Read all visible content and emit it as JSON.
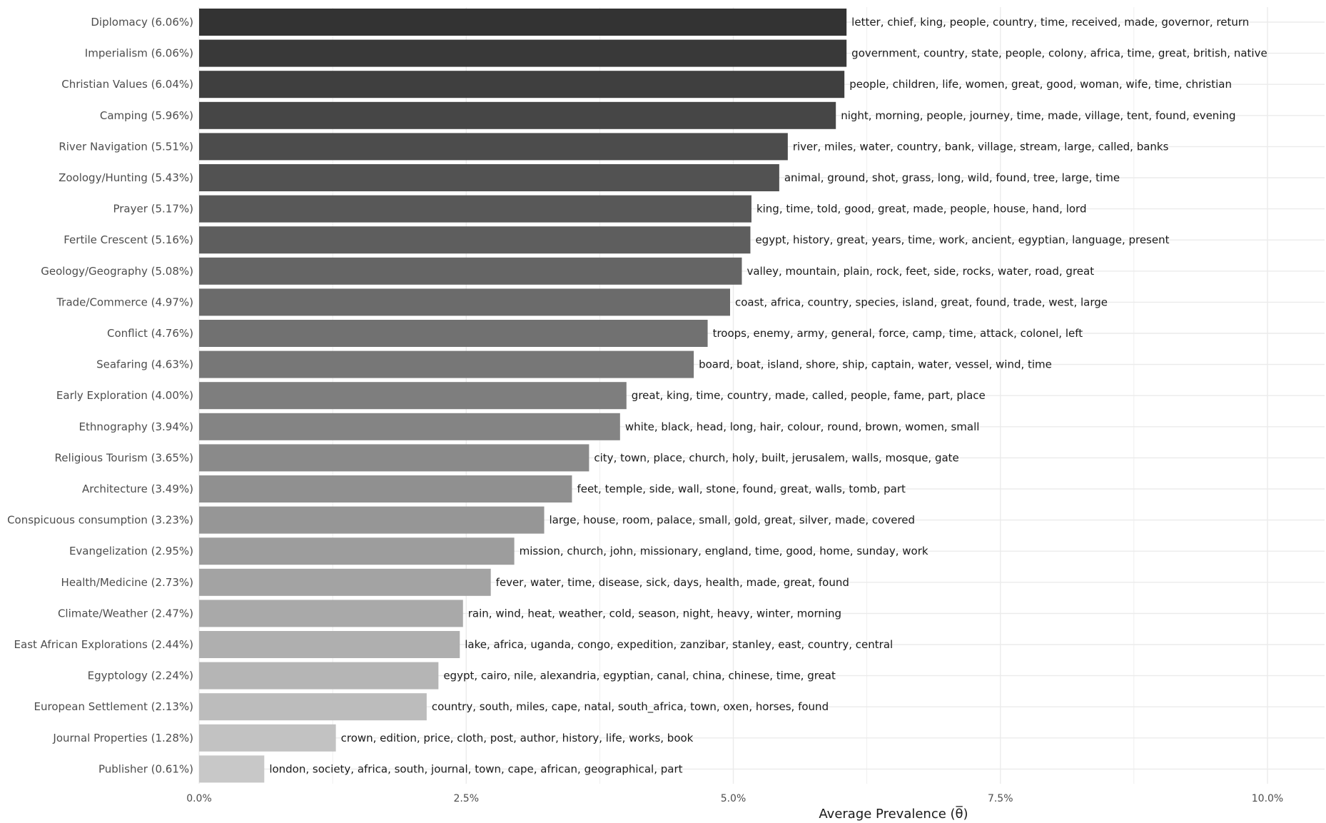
{
  "chart_data": {
    "type": "bar",
    "orientation": "horizontal",
    "xlabel": "Average Prevalence (θ̅)",
    "xlim": [
      0,
      0.1
    ],
    "x_ticks": [
      0,
      0.025,
      0.05,
      0.075,
      0.1
    ],
    "x_tick_labels": [
      "0.0%",
      "2.5%",
      "5.0%",
      "7.5%",
      "10.0%"
    ],
    "grid": true,
    "categories": [
      "Diplomacy (6.06%)",
      "Imperialism (6.06%)",
      "Christian Values (6.04%)",
      "Camping (5.96%)",
      "River Navigation (5.51%)",
      "Zoology/Hunting (5.43%)",
      "Prayer (5.17%)",
      "Fertile Crescent (5.16%)",
      "Geology/Geography (5.08%)",
      "Trade/Commerce (4.97%)",
      "Conflict (4.76%)",
      "Seafaring (4.63%)",
      "Early Exploration (4.00%)",
      "Ethnography (3.94%)",
      "Religious Tourism (3.65%)",
      "Architecture (3.49%)",
      "Conspicuous consumption (3.23%)",
      "Evangelization (2.95%)",
      "Health/Medicine (2.73%)",
      "Climate/Weather (2.47%)",
      "East African Explorations (2.44%)",
      "Egyptology (2.24%)",
      "European Settlement (2.13%)",
      "Journal Properties (1.28%)",
      "Publisher (0.61%)"
    ],
    "values": [
      0.0606,
      0.0606,
      0.0604,
      0.0596,
      0.0551,
      0.0543,
      0.0517,
      0.0516,
      0.0508,
      0.0497,
      0.0476,
      0.0463,
      0.04,
      0.0394,
      0.0365,
      0.0349,
      0.0323,
      0.0295,
      0.0273,
      0.0247,
      0.0244,
      0.0224,
      0.0213,
      0.0128,
      0.0061
    ],
    "bar_labels": [
      "letter, chief, king, people, country, time, received, made, governor, return",
      "government, country, state, people, colony, africa, time, great, british, native",
      "people, children, life, women, great, good, woman, wife, time, christian",
      "night, morning, people, journey, time, made, village, tent, found, evening",
      "river, miles, water, country, bank, village, stream, large, called, banks",
      "animal, ground, shot, grass, long, wild, found, tree, large, time",
      "king, time, told, good, great, made, people, house, hand, lord",
      "egypt, history, great, years, time, work, ancient, egyptian, language, present",
      "valley, mountain, plain, rock, feet, side, rocks, water, road, great",
      "coast, africa, country, species, island, great, found, trade, west, large",
      "troops, enemy, army, general, force, camp, time, attack, colonel, left",
      "board, boat, island, shore, ship, captain, water, vessel, wind, time",
      "great, king, time, country, made, called, people, fame, part, place",
      "white, black, head, long, hair, colour, round, brown, women, small",
      "city, town, place, church, holy, built, jerusalem, walls, mosque, gate",
      "feet, temple, side, wall, stone, found, great, walls, tomb, part",
      "large, house, room, palace, small, gold, great, silver, made, covered",
      "mission, church, john, missionary, england, time, good, home, sunday, work",
      "fever, water, time, disease, sick, days, health, made, great, found",
      "rain, wind, heat, weather, cold, season, night, heavy, winter, morning",
      "lake, africa, uganda, congo, expedition, zanzibar, stanley, east, country, central",
      "egypt, cairo, nile, alexandria, egyptian, canal, china, chinese, time, great",
      "country, south, miles, cape, natal, south_africa, town, oxen, horses, found",
      "crown, edition, price, cloth, post, author, history, life, works, book",
      "london, society, africa, south, journal, town, cape, african, geographical, part"
    ],
    "color_dark": "#333333",
    "color_light": "#c8c8c8",
    "grid_color": "#ebebeb",
    "background": "#ffffff"
  }
}
